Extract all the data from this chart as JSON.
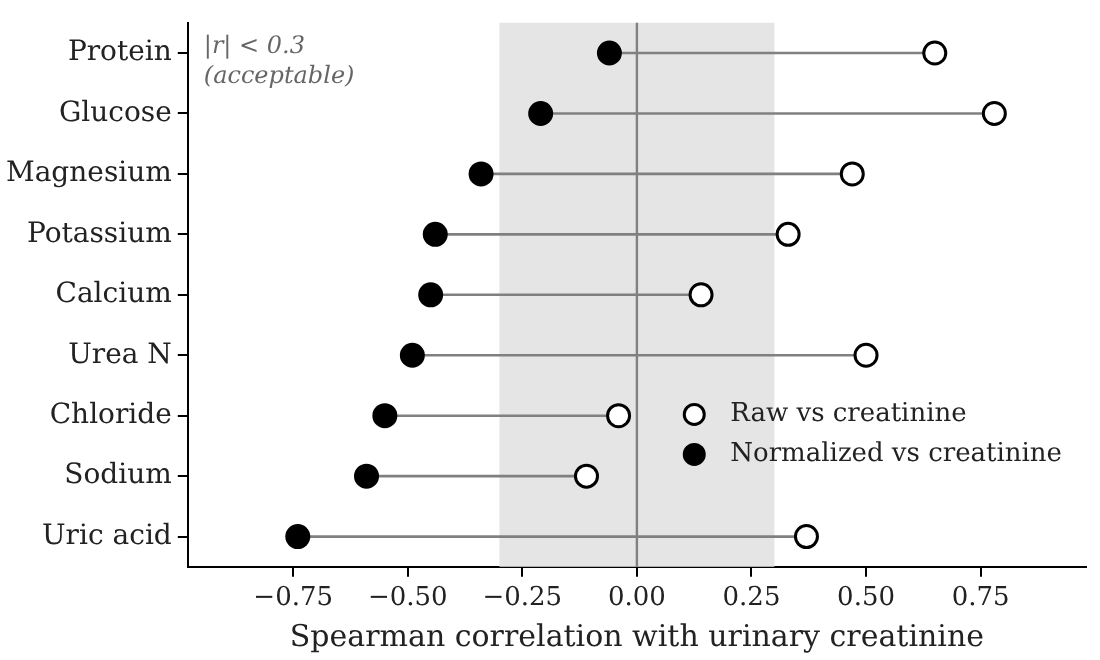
{
  "chart_data": {
    "type": "scatter",
    "orientation": "horizontal",
    "xlabel": "Spearman correlation with urinary creatinine",
    "categories": [
      "Protein",
      "Glucose",
      "Magnesium",
      "Potassium",
      "Calcium",
      "Urea N",
      "Chloride",
      "Sodium",
      "Uric acid"
    ],
    "series": [
      {
        "name": "Raw vs creatinine",
        "color": "#ffffff",
        "values": [
          0.65,
          0.78,
          0.47,
          0.33,
          0.14,
          0.5,
          -0.04,
          -0.11,
          0.37
        ]
      },
      {
        "name": "Normalized vs creatinine",
        "color": "#000000",
        "values": [
          -0.06,
          -0.21,
          -0.34,
          -0.44,
          -0.45,
          -0.49,
          -0.55,
          -0.59,
          -0.74
        ]
      }
    ],
    "xlim": [
      -0.98,
      0.98
    ],
    "xticks": [
      {
        "value": -0.75,
        "label": "−0.75"
      },
      {
        "value": -0.5,
        "label": "−0.50"
      },
      {
        "value": -0.25,
        "label": "−0.25"
      },
      {
        "value": 0,
        "label": "0.00"
      },
      {
        "value": 0.25,
        "label": "0.25"
      },
      {
        "value": 0.5,
        "label": "0.50"
      },
      {
        "value": 0.75,
        "label": "0.75"
      }
    ],
    "bands": [
      {
        "axis": "x",
        "from": -0.3,
        "to": 0.3,
        "color": "#e5e5e5"
      }
    ],
    "annotations": [
      "|r| < 0.3\n(acceptable)"
    ],
    "ref_lines": [
      {
        "axis": "x",
        "value": 0,
        "color": "#808080"
      }
    ],
    "grid": false,
    "legend": "right",
    "marker": "circle"
  }
}
